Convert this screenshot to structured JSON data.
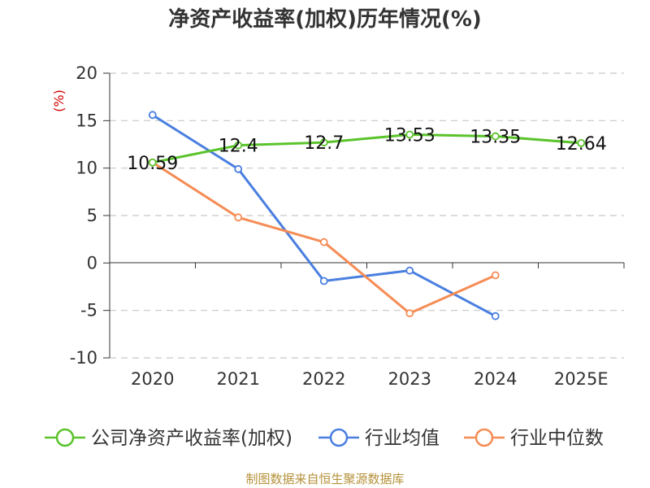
{
  "chart_data": {
    "type": "line",
    "title": "净资产收益率(加权)历年情况(%)",
    "ylabel": "(%)",
    "xlabel": "",
    "categories": [
      "2020",
      "2021",
      "2022",
      "2023",
      "2024",
      "2025E"
    ],
    "ylim": [
      -10,
      20
    ],
    "yticks": [
      20,
      15,
      10,
      5,
      0,
      -5,
      -10
    ],
    "grid": true,
    "legend_position": "bottom",
    "series": [
      {
        "name": "公司净资产收益率(加权)",
        "color": "#5bc32c",
        "values": [
          10.59,
          12.4,
          12.7,
          13.53,
          13.35,
          12.64
        ],
        "labels": [
          "10.59",
          "12.4",
          "12.7",
          "13.53",
          "13.35",
          "12.64"
        ]
      },
      {
        "name": "行业均值",
        "color": "#4a7fe0",
        "values": [
          15.6,
          9.9,
          -1.9,
          -0.8,
          -5.6,
          null
        ]
      },
      {
        "name": "行业中位数",
        "color": "#f58c55",
        "values": [
          10.6,
          4.8,
          2.2,
          -5.3,
          -1.3,
          null
        ]
      }
    ]
  },
  "footer": {
    "source": "制图数据来自恒生聚源数据库"
  }
}
